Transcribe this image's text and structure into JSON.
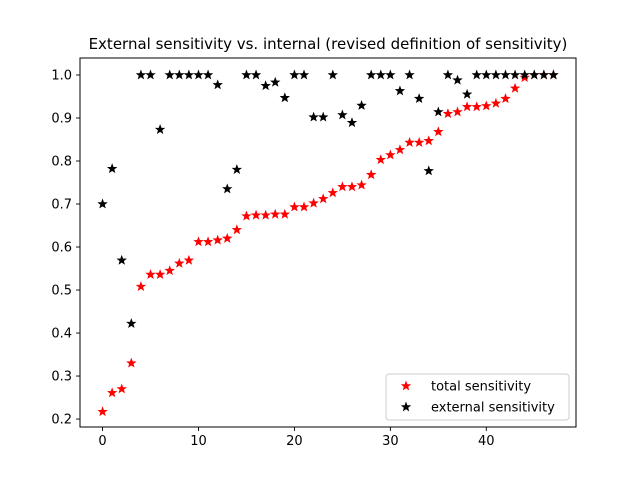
{
  "chart_data": {
    "type": "scatter",
    "title": "External sensitivity vs. internal (revised definition of sensitivity)",
    "xlabel": "",
    "ylabel": "",
    "xlim": [
      -2.35,
      49.35
    ],
    "ylim": [
      0.1815,
      1.0395
    ],
    "x_ticks": [
      0,
      10,
      20,
      30,
      40
    ],
    "y_ticks": [
      0.2,
      0.3,
      0.4,
      0.5,
      0.6,
      0.7,
      0.8,
      0.9,
      1.0
    ],
    "y_tick_labels": [
      "0.2",
      "0.3",
      "0.4",
      "0.5",
      "0.6",
      "0.7",
      "0.8",
      "0.9",
      "1.0"
    ],
    "grid": false,
    "legend_position": "lower-right",
    "series": [
      {
        "name": "total sensitivity",
        "color": "#ff0000",
        "marker": "star",
        "x": [
          0,
          1,
          2,
          3,
          4,
          5,
          6,
          7,
          8,
          9,
          10,
          11,
          12,
          13,
          14,
          15,
          16,
          17,
          18,
          19,
          20,
          21,
          22,
          23,
          24,
          25,
          26,
          27,
          28,
          29,
          30,
          31,
          32,
          33,
          34,
          35,
          36,
          37,
          38,
          39,
          40,
          41,
          42,
          43,
          44,
          45,
          46,
          47
        ],
        "y": [
          0.217,
          0.261,
          0.27,
          0.33,
          0.508,
          0.536,
          0.536,
          0.545,
          0.562,
          0.569,
          0.612,
          0.612,
          0.616,
          0.62,
          0.64,
          0.672,
          0.674,
          0.674,
          0.676,
          0.676,
          0.693,
          0.693,
          0.702,
          0.712,
          0.726,
          0.74,
          0.74,
          0.744,
          0.768,
          0.803,
          0.814,
          0.826,
          0.843,
          0.843,
          0.847,
          0.868,
          0.91,
          0.914,
          0.926,
          0.926,
          0.928,
          0.934,
          0.945,
          0.969,
          0.994,
          1.0,
          1.0,
          1.0
        ]
      },
      {
        "name": "external sensitivity",
        "color": "#000000",
        "marker": "star",
        "x": [
          0,
          1,
          2,
          3,
          4,
          5,
          6,
          7,
          8,
          9,
          10,
          11,
          12,
          13,
          14,
          15,
          16,
          17,
          18,
          19,
          20,
          21,
          22,
          23,
          24,
          25,
          26,
          27,
          28,
          29,
          30,
          31,
          32,
          33,
          34,
          35,
          36,
          37,
          38,
          39,
          40,
          41,
          42,
          43,
          44,
          45,
          46,
          47
        ],
        "y": [
          0.7,
          0.782,
          0.569,
          0.422,
          1.0,
          1.0,
          0.873,
          1.0,
          1.0,
          1.0,
          1.0,
          1.0,
          0.977,
          0.735,
          0.78,
          1.0,
          1.0,
          0.975,
          0.983,
          0.947,
          1.0,
          1.0,
          0.902,
          0.902,
          1.0,
          0.907,
          0.889,
          0.929,
          1.0,
          1.0,
          1.0,
          0.963,
          1.0,
          0.945,
          0.777,
          0.914,
          1.0,
          0.988,
          0.955,
          1.0,
          1.0,
          1.0,
          1.0,
          1.0,
          1.0,
          1.0,
          1.0,
          1.0
        ]
      }
    ]
  }
}
